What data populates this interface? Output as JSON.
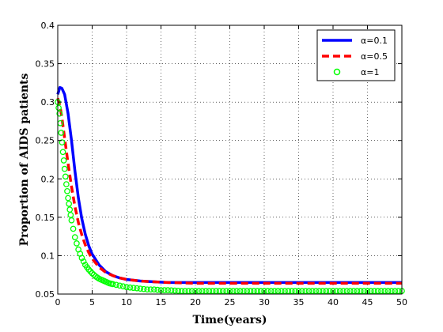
{
  "chart_data": {
    "type": "line",
    "xlabel": "Time(years)",
    "ylabel": "Proportion of AIDS patients",
    "xlim": [
      0,
      50
    ],
    "ylim": [
      0.05,
      0.4
    ],
    "xticks": [
      0,
      5,
      10,
      15,
      20,
      25,
      30,
      35,
      40,
      45,
      50
    ],
    "yticks": [
      0.05,
      0.1,
      0.15,
      0.2,
      0.25,
      0.3,
      0.35,
      0.4
    ],
    "xtick_labels": [
      "0",
      "5",
      "10",
      "15",
      "20",
      "25",
      "30",
      "35",
      "40",
      "45",
      "50"
    ],
    "ytick_labels": [
      "0.05",
      "0.1",
      "0.15",
      "0.2",
      "0.25",
      "0.3",
      "0.35",
      "0.4"
    ],
    "grid": true,
    "legend_position": "top-right",
    "series": [
      {
        "name": "α=0.1",
        "color": "#0000ff",
        "style": "solid",
        "x": [
          0,
          0.3,
          0.6,
          1,
          1.5,
          2,
          2.5,
          3,
          3.5,
          4,
          4.5,
          5,
          6,
          7,
          8,
          9,
          10,
          12,
          14,
          16,
          20,
          25,
          30,
          35,
          40,
          45,
          50
        ],
        "y": [
          0.31,
          0.319,
          0.318,
          0.31,
          0.285,
          0.25,
          0.21,
          0.175,
          0.148,
          0.128,
          0.113,
          0.102,
          0.088,
          0.079,
          0.074,
          0.071,
          0.069,
          0.067,
          0.066,
          0.065,
          0.065,
          0.065,
          0.065,
          0.065,
          0.065,
          0.065,
          0.065
        ]
      },
      {
        "name": "α=0.5",
        "color": "#ff0000",
        "style": "dashed",
        "x": [
          0,
          0.3,
          0.6,
          1,
          1.5,
          2,
          2.5,
          3,
          3.5,
          4,
          4.5,
          5,
          6,
          7,
          8,
          9,
          10,
          12,
          14,
          16,
          20,
          25,
          30,
          35,
          40,
          45,
          50
        ],
        "y": [
          0.305,
          0.296,
          0.28,
          0.253,
          0.22,
          0.19,
          0.164,
          0.143,
          0.127,
          0.114,
          0.104,
          0.096,
          0.085,
          0.078,
          0.074,
          0.071,
          0.069,
          0.067,
          0.066,
          0.065,
          0.064,
          0.064,
          0.064,
          0.064,
          0.064,
          0.064,
          0.064
        ]
      },
      {
        "name": "α=1",
        "color": "#00ff00",
        "style": "circles",
        "x": [
          0,
          0.25,
          0.5,
          0.75,
          1,
          1.25,
          1.5,
          1.75,
          2,
          2.5,
          3,
          3.5,
          4,
          4.5,
          5,
          5.5,
          6,
          6.5,
          7,
          7.5,
          8,
          9,
          10,
          11,
          12,
          13,
          14,
          15,
          16,
          18,
          20,
          22,
          24,
          26,
          28,
          30,
          32,
          34,
          36,
          38,
          40,
          42,
          44,
          46,
          48,
          50
        ],
        "y": [
          0.3,
          0.285,
          0.26,
          0.235,
          0.213,
          0.193,
          0.175,
          0.16,
          0.146,
          0.124,
          0.108,
          0.097,
          0.088,
          0.082,
          0.077,
          0.073,
          0.07,
          0.068,
          0.066,
          0.064,
          0.063,
          0.061,
          0.059,
          0.058,
          0.057,
          0.056,
          0.056,
          0.055,
          0.055,
          0.054,
          0.054,
          0.054,
          0.054,
          0.054,
          0.054,
          0.054,
          0.054,
          0.054,
          0.054,
          0.054,
          0.054,
          0.054,
          0.054,
          0.054,
          0.054,
          0.054
        ]
      }
    ]
  }
}
